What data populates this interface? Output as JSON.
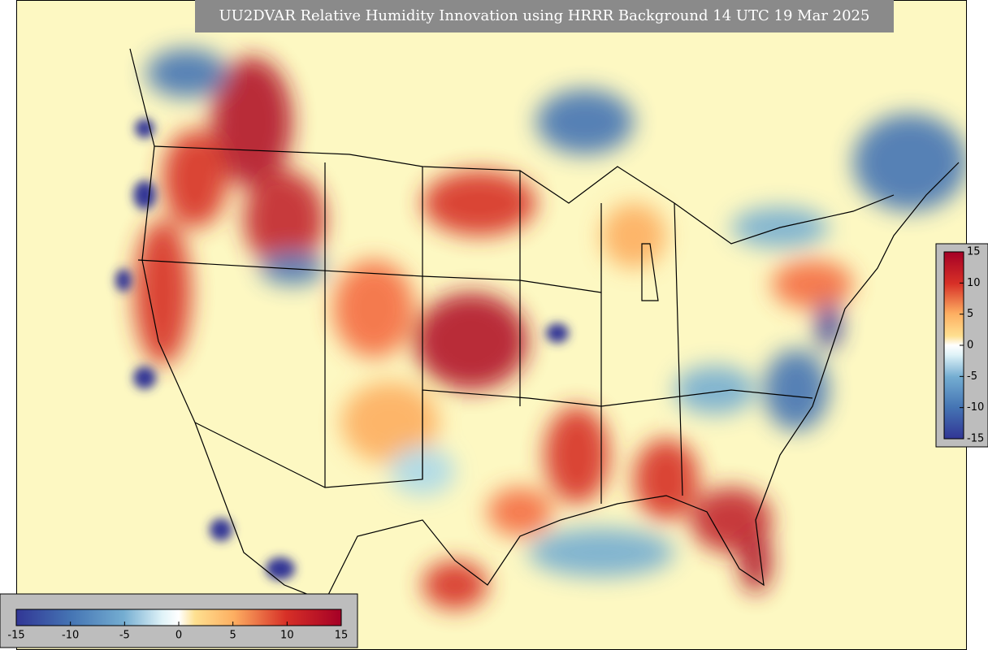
{
  "title": "UU2DVAR Relative Humidity Innovation using HRRR Background 14 UTC 19 Mar 2025",
  "colorbars": [
    {
      "orientation": "vertical",
      "range": [
        -15,
        15
      ],
      "ticks": [
        -15,
        -10,
        -5,
        0,
        5,
        10,
        15
      ]
    },
    {
      "orientation": "horizontal",
      "range": [
        -15,
        15
      ],
      "ticks": [
        -15,
        -10,
        -5,
        0,
        5,
        10,
        15
      ]
    }
  ]
}
